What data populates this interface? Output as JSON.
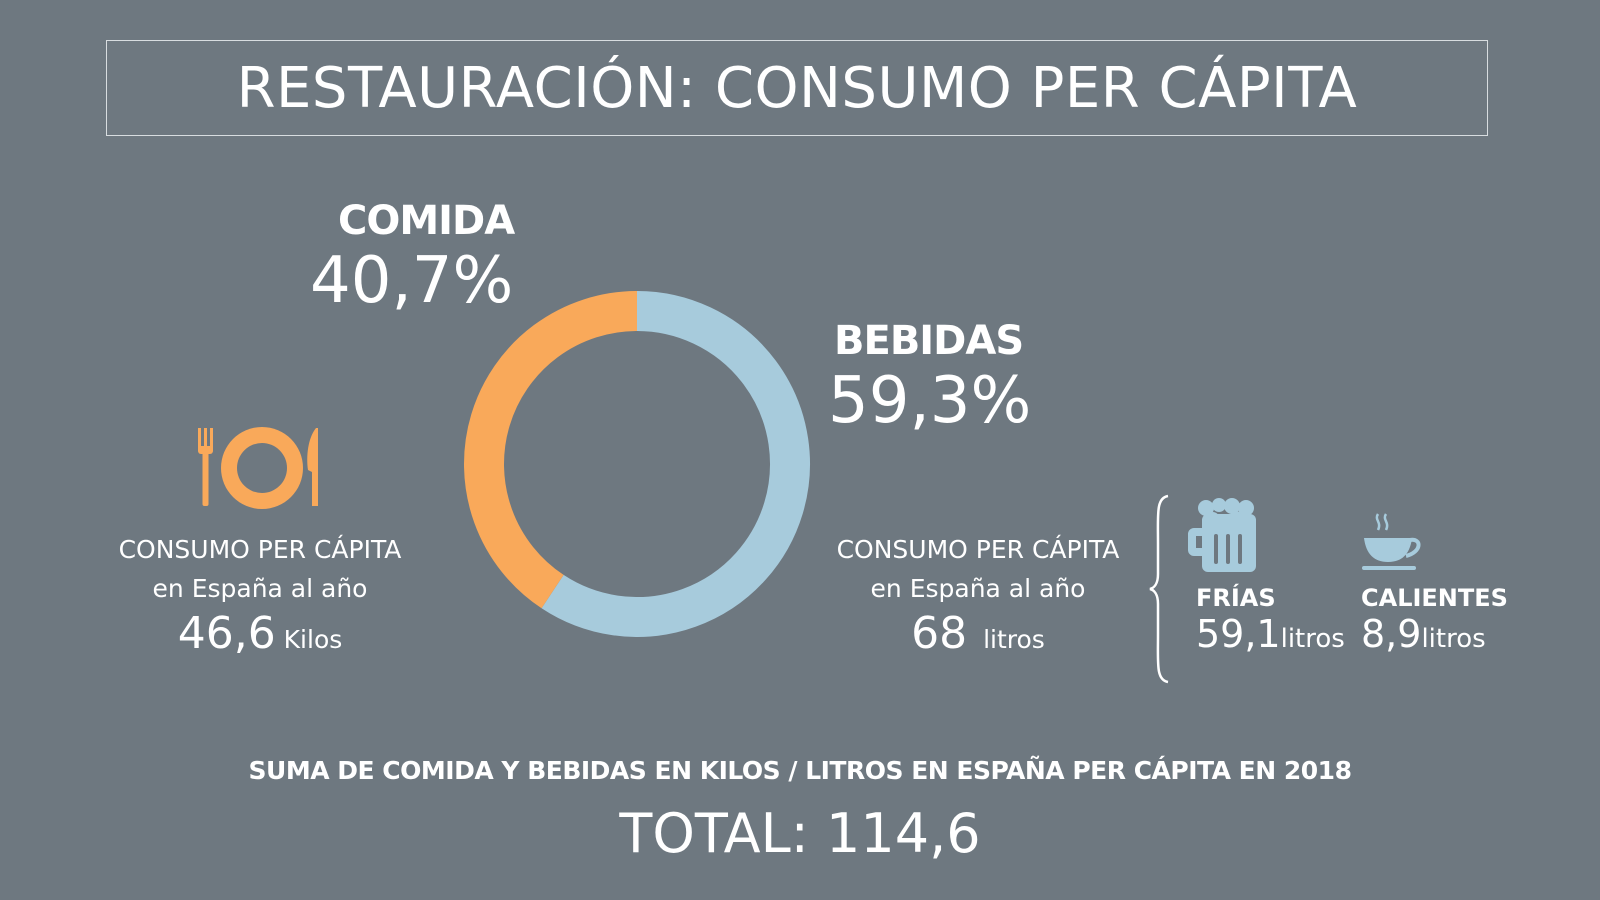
{
  "title": "RESTAURACIÓN: CONSUMO PER CÁPITA",
  "colors": {
    "background": "#6e7880",
    "comida": "#f9a95a",
    "bebidas": "#a7cbdc"
  },
  "chart_data": {
    "type": "pie",
    "variant": "donut",
    "categories": [
      "COMIDA",
      "BEBIDAS"
    ],
    "values": [
      40.7,
      59.3
    ],
    "value_labels": [
      "40,7%",
      "59,3%"
    ],
    "unit": "%"
  },
  "comida": {
    "label": "COMIDA",
    "percent": "40,7%",
    "icon": "plate-cutlery-icon",
    "info_line1": "CONSUMO  PER CÁPITA",
    "info_line2": "en España al año",
    "value": "46,6",
    "unit": "Kilos"
  },
  "bebidas": {
    "label": "BEBIDAS",
    "percent": "59,3%",
    "info_line1": "CONSUMO  PER CÁPITA",
    "info_line2": "en España al año",
    "value": "68",
    "unit": "litros",
    "frias": {
      "icon": "beer-mug-icon",
      "label": "FRÍAS",
      "value": "59,1",
      "unit": "litros"
    },
    "calientes": {
      "icon": "coffee-cup-icon",
      "label": "CALIENTES",
      "value": "8,9",
      "unit": "litros"
    }
  },
  "footer": {
    "caption": "SUMA DE COMIDA Y BEBIDAS EN KILOS / LITROS EN ESPAÑA PER CÁPITA EN 2018",
    "total_label": "TOTAL:",
    "total_value": "114,6"
  }
}
